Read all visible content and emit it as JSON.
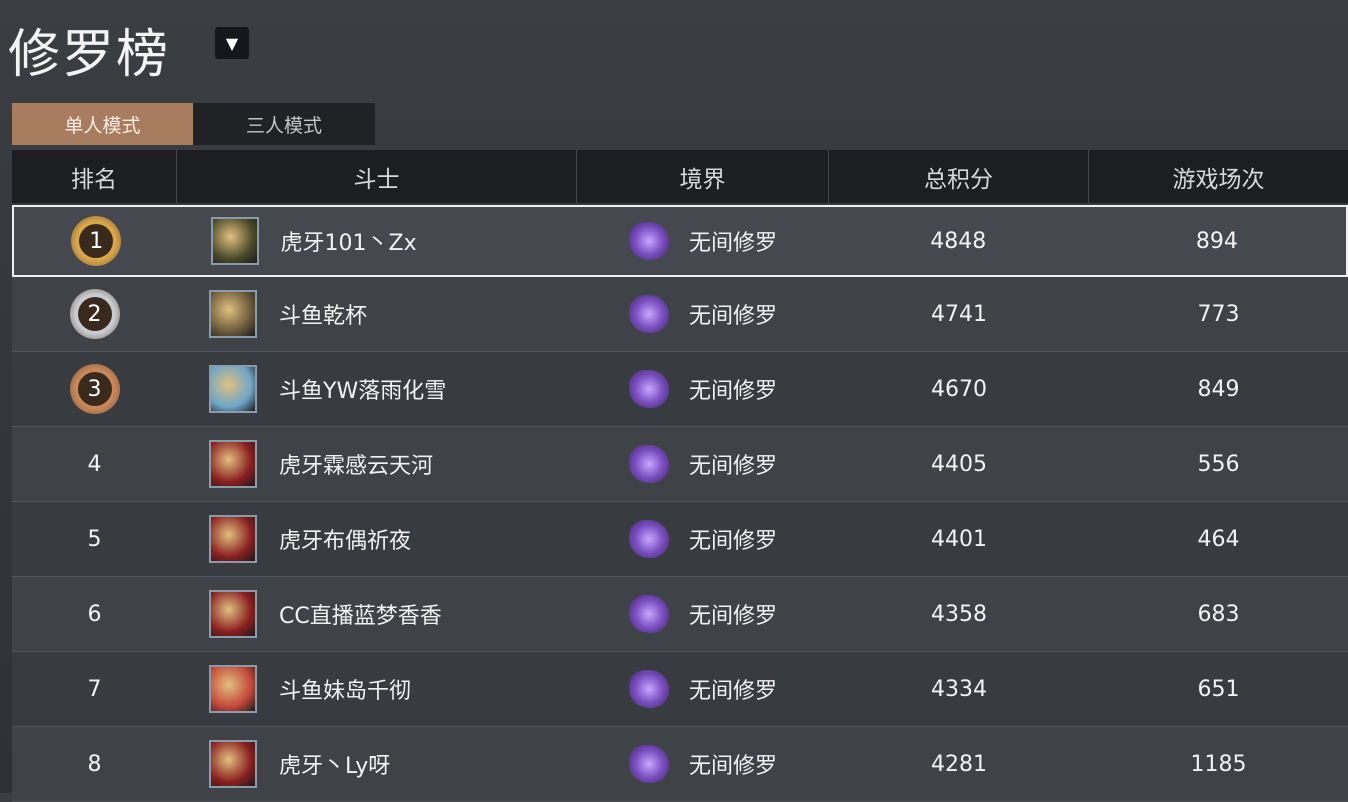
{
  "title": "修罗榜",
  "dropdown_icon": "triangle-down-icon",
  "tabs": [
    {
      "label": "单人模式",
      "active": true
    },
    {
      "label": "三人模式",
      "active": false
    }
  ],
  "columns": [
    "排名",
    "斗士",
    "境界",
    "总积分",
    "游戏场次"
  ],
  "medal_colors": {
    "1": "#d9a64a",
    "2": "#c8ccd2",
    "3": "#c9875a"
  },
  "avatar_colors": [
    "#4a4a2a",
    "#6b5a3a",
    "#6fa6c8",
    "#8a1f1f",
    "#8a1f1f",
    "#8a1f1f",
    "#c4483a",
    "#8a1f1f"
  ],
  "rows": [
    {
      "rank": "1",
      "name": "虎牙101丶Zx",
      "realm": "无间修罗",
      "score": "4848",
      "games": "894"
    },
    {
      "rank": "2",
      "name": "斗鱼乾杯",
      "realm": "无间修罗",
      "score": "4741",
      "games": "773"
    },
    {
      "rank": "3",
      "name": "斗鱼YW落雨化雪",
      "realm": "无间修罗",
      "score": "4670",
      "games": "849"
    },
    {
      "rank": "4",
      "name": "虎牙霖感云天河",
      "realm": "无间修罗",
      "score": "4405",
      "games": "556"
    },
    {
      "rank": "5",
      "name": "虎牙布偶祈夜",
      "realm": "无间修罗",
      "score": "4401",
      "games": "464"
    },
    {
      "rank": "6",
      "name": "CC直播蓝梦香香",
      "realm": "无间修罗",
      "score": "4358",
      "games": "683"
    },
    {
      "rank": "7",
      "name": "斗鱼妹岛千彻",
      "realm": "无间修罗",
      "score": "4334",
      "games": "651"
    },
    {
      "rank": "8",
      "name": "虎牙丶Ly呀",
      "realm": "无间修罗",
      "score": "4281",
      "games": "1185"
    }
  ]
}
